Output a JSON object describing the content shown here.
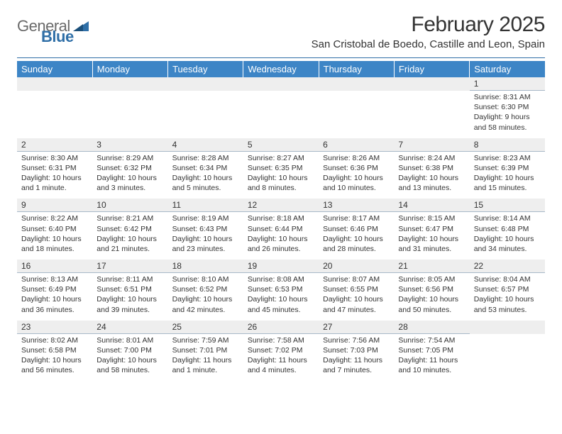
{
  "logo": {
    "part1": "General",
    "part2": "Blue"
  },
  "header": {
    "month_title": "February 2025",
    "location": "San Cristobal de Boedo, Castille and Leon, Spain"
  },
  "colors": {
    "header_bar": "#3d85c6",
    "divider": "#2f6fa7",
    "daynum_bg": "#eeeeee",
    "text": "#333333"
  },
  "weekdays": [
    "Sunday",
    "Monday",
    "Tuesday",
    "Wednesday",
    "Thursday",
    "Friday",
    "Saturday"
  ],
  "weeks": [
    {
      "nums": [
        "",
        "",
        "",
        "",
        "",
        "",
        "1"
      ],
      "details": [
        null,
        null,
        null,
        null,
        null,
        null,
        {
          "sunrise": "Sunrise: 8:31 AM",
          "sunset": "Sunset: 6:30 PM",
          "daylight": "Daylight: 9 hours and 58 minutes."
        }
      ]
    },
    {
      "nums": [
        "2",
        "3",
        "4",
        "5",
        "6",
        "7",
        "8"
      ],
      "details": [
        {
          "sunrise": "Sunrise: 8:30 AM",
          "sunset": "Sunset: 6:31 PM",
          "daylight": "Daylight: 10 hours and 1 minute."
        },
        {
          "sunrise": "Sunrise: 8:29 AM",
          "sunset": "Sunset: 6:32 PM",
          "daylight": "Daylight: 10 hours and 3 minutes."
        },
        {
          "sunrise": "Sunrise: 8:28 AM",
          "sunset": "Sunset: 6:34 PM",
          "daylight": "Daylight: 10 hours and 5 minutes."
        },
        {
          "sunrise": "Sunrise: 8:27 AM",
          "sunset": "Sunset: 6:35 PM",
          "daylight": "Daylight: 10 hours and 8 minutes."
        },
        {
          "sunrise": "Sunrise: 8:26 AM",
          "sunset": "Sunset: 6:36 PM",
          "daylight": "Daylight: 10 hours and 10 minutes."
        },
        {
          "sunrise": "Sunrise: 8:24 AM",
          "sunset": "Sunset: 6:38 PM",
          "daylight": "Daylight: 10 hours and 13 minutes."
        },
        {
          "sunrise": "Sunrise: 8:23 AM",
          "sunset": "Sunset: 6:39 PM",
          "daylight": "Daylight: 10 hours and 15 minutes."
        }
      ]
    },
    {
      "nums": [
        "9",
        "10",
        "11",
        "12",
        "13",
        "14",
        "15"
      ],
      "details": [
        {
          "sunrise": "Sunrise: 8:22 AM",
          "sunset": "Sunset: 6:40 PM",
          "daylight": "Daylight: 10 hours and 18 minutes."
        },
        {
          "sunrise": "Sunrise: 8:21 AM",
          "sunset": "Sunset: 6:42 PM",
          "daylight": "Daylight: 10 hours and 21 minutes."
        },
        {
          "sunrise": "Sunrise: 8:19 AM",
          "sunset": "Sunset: 6:43 PM",
          "daylight": "Daylight: 10 hours and 23 minutes."
        },
        {
          "sunrise": "Sunrise: 8:18 AM",
          "sunset": "Sunset: 6:44 PM",
          "daylight": "Daylight: 10 hours and 26 minutes."
        },
        {
          "sunrise": "Sunrise: 8:17 AM",
          "sunset": "Sunset: 6:46 PM",
          "daylight": "Daylight: 10 hours and 28 minutes."
        },
        {
          "sunrise": "Sunrise: 8:15 AM",
          "sunset": "Sunset: 6:47 PM",
          "daylight": "Daylight: 10 hours and 31 minutes."
        },
        {
          "sunrise": "Sunrise: 8:14 AM",
          "sunset": "Sunset: 6:48 PM",
          "daylight": "Daylight: 10 hours and 34 minutes."
        }
      ]
    },
    {
      "nums": [
        "16",
        "17",
        "18",
        "19",
        "20",
        "21",
        "22"
      ],
      "details": [
        {
          "sunrise": "Sunrise: 8:13 AM",
          "sunset": "Sunset: 6:49 PM",
          "daylight": "Daylight: 10 hours and 36 minutes."
        },
        {
          "sunrise": "Sunrise: 8:11 AM",
          "sunset": "Sunset: 6:51 PM",
          "daylight": "Daylight: 10 hours and 39 minutes."
        },
        {
          "sunrise": "Sunrise: 8:10 AM",
          "sunset": "Sunset: 6:52 PM",
          "daylight": "Daylight: 10 hours and 42 minutes."
        },
        {
          "sunrise": "Sunrise: 8:08 AM",
          "sunset": "Sunset: 6:53 PM",
          "daylight": "Daylight: 10 hours and 45 minutes."
        },
        {
          "sunrise": "Sunrise: 8:07 AM",
          "sunset": "Sunset: 6:55 PM",
          "daylight": "Daylight: 10 hours and 47 minutes."
        },
        {
          "sunrise": "Sunrise: 8:05 AM",
          "sunset": "Sunset: 6:56 PM",
          "daylight": "Daylight: 10 hours and 50 minutes."
        },
        {
          "sunrise": "Sunrise: 8:04 AM",
          "sunset": "Sunset: 6:57 PM",
          "daylight": "Daylight: 10 hours and 53 minutes."
        }
      ]
    },
    {
      "nums": [
        "23",
        "24",
        "25",
        "26",
        "27",
        "28",
        ""
      ],
      "details": [
        {
          "sunrise": "Sunrise: 8:02 AM",
          "sunset": "Sunset: 6:58 PM",
          "daylight": "Daylight: 10 hours and 56 minutes."
        },
        {
          "sunrise": "Sunrise: 8:01 AM",
          "sunset": "Sunset: 7:00 PM",
          "daylight": "Daylight: 10 hours and 58 minutes."
        },
        {
          "sunrise": "Sunrise: 7:59 AM",
          "sunset": "Sunset: 7:01 PM",
          "daylight": "Daylight: 11 hours and 1 minute."
        },
        {
          "sunrise": "Sunrise: 7:58 AM",
          "sunset": "Sunset: 7:02 PM",
          "daylight": "Daylight: 11 hours and 4 minutes."
        },
        {
          "sunrise": "Sunrise: 7:56 AM",
          "sunset": "Sunset: 7:03 PM",
          "daylight": "Daylight: 11 hours and 7 minutes."
        },
        {
          "sunrise": "Sunrise: 7:54 AM",
          "sunset": "Sunset: 7:05 PM",
          "daylight": "Daylight: 11 hours and 10 minutes."
        },
        null
      ]
    }
  ]
}
